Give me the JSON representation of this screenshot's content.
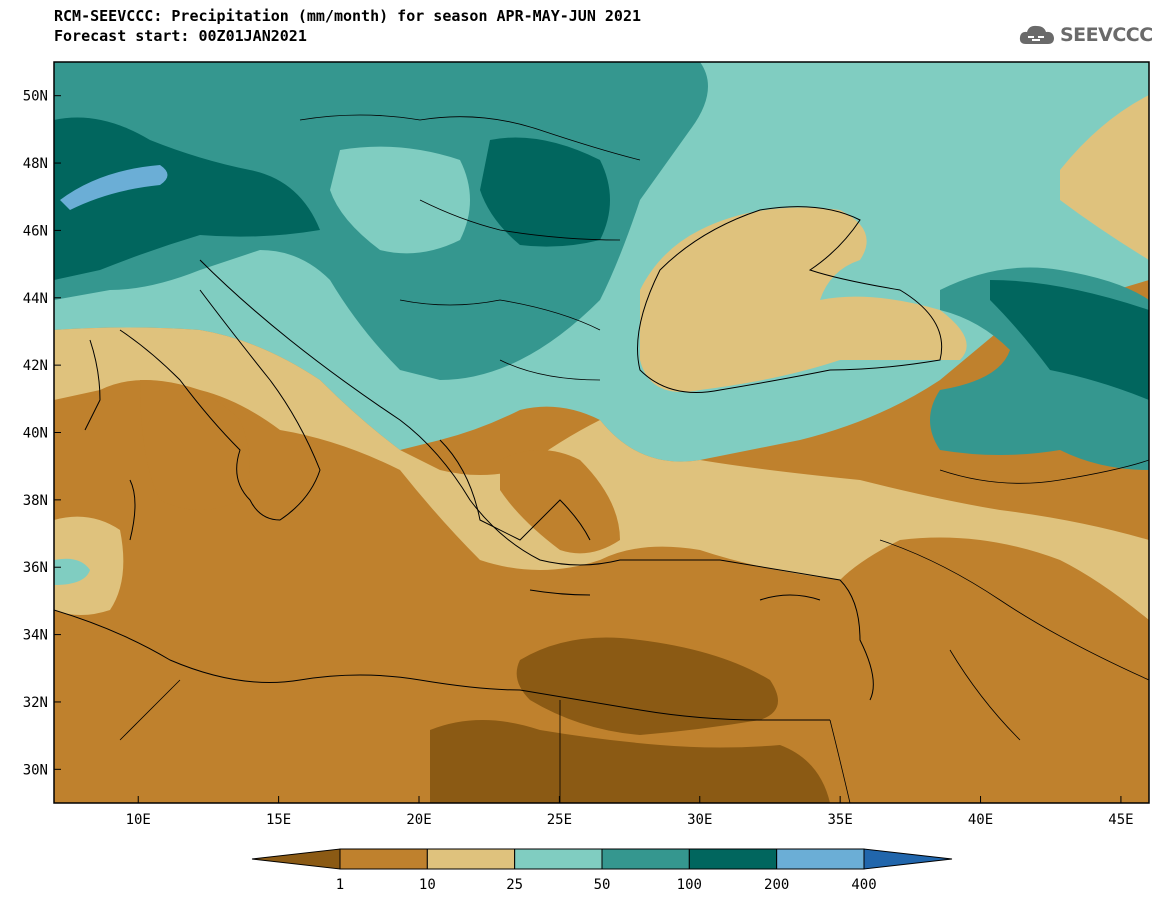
{
  "header": {
    "title": "RCM-SEEVCCC: Precipitation (mm/month) for season APR-MAY-JUN 2021",
    "subtitle": "Forecast start: 00Z01JAN2021",
    "logo_text": "SEEVCCC"
  },
  "map": {
    "lon_range": [
      7,
      46
    ],
    "lat_range": [
      29,
      51
    ],
    "lon_ticks": [
      "10E",
      "15E",
      "20E",
      "25E",
      "30E",
      "35E",
      "40E",
      "45E"
    ],
    "lat_ticks": [
      "50N",
      "48N",
      "46N",
      "44N",
      "42N",
      "40N",
      "38N",
      "36N",
      "34N",
      "32N",
      "30N"
    ]
  },
  "colorbar": {
    "labels": [
      "1",
      "10",
      "25",
      "50",
      "100",
      "200",
      "400"
    ],
    "colors": [
      "#8b5a14",
      "#bf812d",
      "#dfc27d",
      "#80cdc1",
      "#35978f",
      "#01665e",
      "#6baed6",
      "#2166ac"
    ]
  }
}
